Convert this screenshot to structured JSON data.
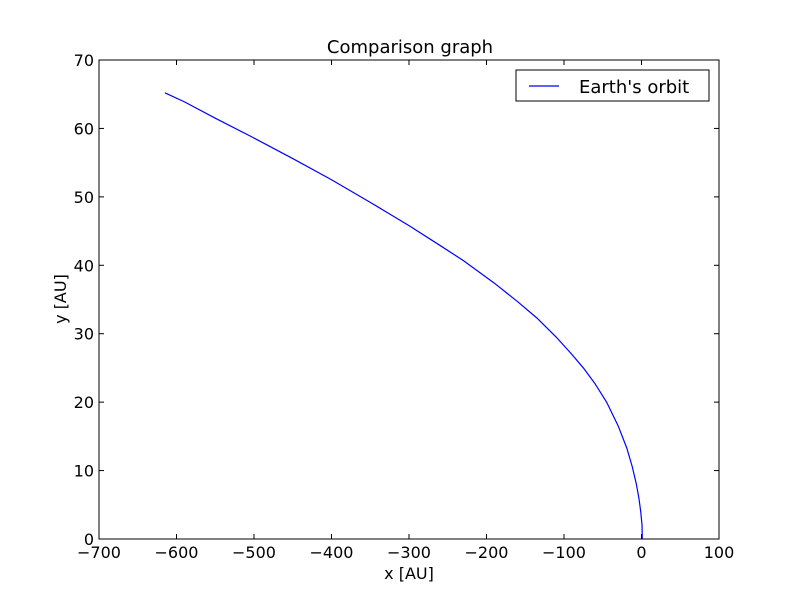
{
  "chart_data": {
    "type": "line",
    "title": "Comparison graph",
    "xlabel": "x [AU]",
    "ylabel": "y [AU]",
    "xlim": [
      -700,
      100
    ],
    "ylim": [
      0,
      70
    ],
    "xticks": [
      -700,
      -600,
      -500,
      -400,
      -300,
      -200,
      -100,
      0,
      100
    ],
    "yticks": [
      0,
      10,
      20,
      30,
      40,
      50,
      60,
      70
    ],
    "xtick_labels": [
      "−700",
      "−600",
      "−500",
      "−400",
      "−300",
      "−200",
      "−100",
      "0",
      "100"
    ],
    "ytick_labels": [
      "0",
      "10",
      "20",
      "30",
      "40",
      "50",
      "60",
      "70"
    ],
    "grid": false,
    "legend_position": "top-right",
    "series": [
      {
        "name": "Earth's orbit",
        "color": "#0000ff",
        "x": [
          1,
          0.7,
          -1,
          -3.4,
          -6.6,
          -12,
          -19,
          -30,
          -45,
          -60,
          -75,
          -90,
          -110,
          -135,
          -160,
          -190,
          -230,
          -260,
          -300,
          -350,
          -400,
          -450,
          -500,
          -550,
          -590,
          -615
        ],
        "y": [
          0,
          2,
          4,
          6,
          8,
          10.6,
          13.3,
          16.5,
          20,
          22.7,
          25,
          27,
          29.5,
          32.3,
          34.7,
          37.4,
          40.7,
          42.9,
          45.8,
          49.2,
          52.5,
          55.6,
          58.6,
          61.5,
          63.9,
          65.2
        ]
      }
    ]
  }
}
